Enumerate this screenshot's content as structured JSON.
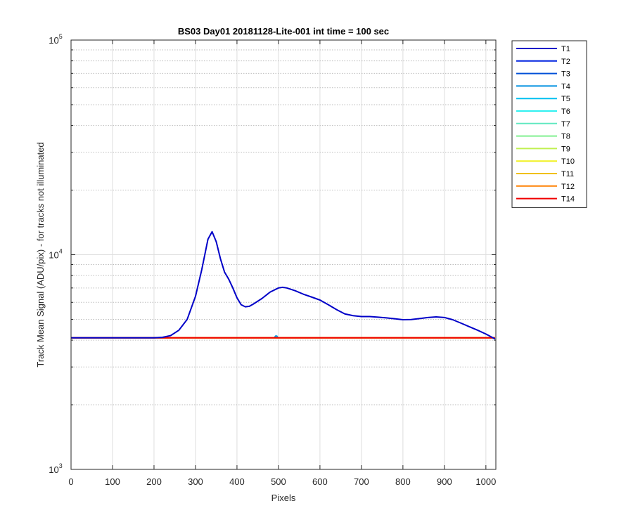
{
  "chart_data": {
    "type": "line",
    "title": "BS03 Day01 20181128-Lite-001 int time = 100 sec",
    "xlabel": "Pixels",
    "ylabel": "Track Mean Signal (ADU/pix) - for tracks not illuminated",
    "xlim": [
      0,
      1024
    ],
    "ylim": [
      1000,
      100000
    ],
    "yscale": "log",
    "grid": true,
    "legend_position": "outside-top-right",
    "x_ticks": [
      0,
      100,
      200,
      300,
      400,
      500,
      600,
      700,
      800,
      900,
      1000
    ],
    "y_ticks": [
      {
        "value": 1000,
        "base": "10",
        "exp": "3"
      },
      {
        "value": 10000,
        "base": "10",
        "exp": "4"
      },
      {
        "value": 100000,
        "base": "10",
        "exp": "5"
      }
    ],
    "series": [
      {
        "name": "T1",
        "color": "#0000c8",
        "x": [
          0,
          200,
          220,
          240,
          260,
          280,
          300,
          315,
          330,
          340,
          350,
          360,
          370,
          380,
          390,
          400,
          410,
          420,
          430,
          440,
          460,
          480,
          500,
          510,
          520,
          540,
          560,
          580,
          600,
          620,
          640,
          660,
          680,
          700,
          720,
          740,
          760,
          780,
          800,
          820,
          840,
          860,
          880,
          900,
          920,
          940,
          960,
          980,
          1000,
          1010,
          1022
        ],
        "y": [
          4100,
          4100,
          4120,
          4200,
          4450,
          5000,
          6400,
          8500,
          11800,
          12800,
          11500,
          9600,
          8300,
          7700,
          7000,
          6300,
          5850,
          5720,
          5750,
          5900,
          6250,
          6700,
          7000,
          7050,
          7000,
          6800,
          6550,
          6350,
          6150,
          5850,
          5550,
          5300,
          5200,
          5150,
          5150,
          5120,
          5080,
          5030,
          4980,
          4990,
          5040,
          5100,
          5130,
          5100,
          4980,
          4800,
          4620,
          4450,
          4270,
          4170,
          4050
        ]
      },
      {
        "name": "T2",
        "color": "#0022e0",
        "x": [
          0,
          1022
        ],
        "y": [
          4100,
          4100
        ]
      },
      {
        "name": "T3",
        "color": "#0050d8",
        "x": [
          0,
          1022
        ],
        "y": [
          4100,
          4100
        ]
      },
      {
        "name": "T4",
        "color": "#0090e0",
        "x": [
          0,
          490,
          493,
          496,
          499,
          1022
        ],
        "y": [
          4100,
          4100,
          4180,
          4180,
          4100,
          4100
        ]
      },
      {
        "name": "T5",
        "color": "#00c0f0",
        "x": [
          0,
          1022
        ],
        "y": [
          4100,
          4100
        ]
      },
      {
        "name": "T6",
        "color": "#30f0f0",
        "x": [
          0,
          1022
        ],
        "y": [
          4100,
          4100
        ]
      },
      {
        "name": "T7",
        "color": "#60e8c0",
        "x": [
          0,
          1022
        ],
        "y": [
          4100,
          4100
        ]
      },
      {
        "name": "T8",
        "color": "#80f090",
        "x": [
          0,
          1022
        ],
        "y": [
          4100,
          4100
        ]
      },
      {
        "name": "T9",
        "color": "#c0f050",
        "x": [
          0,
          1022
        ],
        "y": [
          4100,
          4100
        ]
      },
      {
        "name": "T10",
        "color": "#f0f020",
        "x": [
          0,
          1022
        ],
        "y": [
          4100,
          4100
        ]
      },
      {
        "name": "T11",
        "color": "#f0c010",
        "x": [
          0,
          1022
        ],
        "y": [
          4100,
          4100
        ]
      },
      {
        "name": "T12",
        "color": "#ff8000",
        "x": [
          0,
          1022
        ],
        "y": [
          4100,
          4100
        ]
      },
      {
        "name": "T14",
        "color": "#f00000",
        "x": [
          0,
          1022
        ],
        "y": [
          4100,
          4100
        ]
      }
    ]
  }
}
